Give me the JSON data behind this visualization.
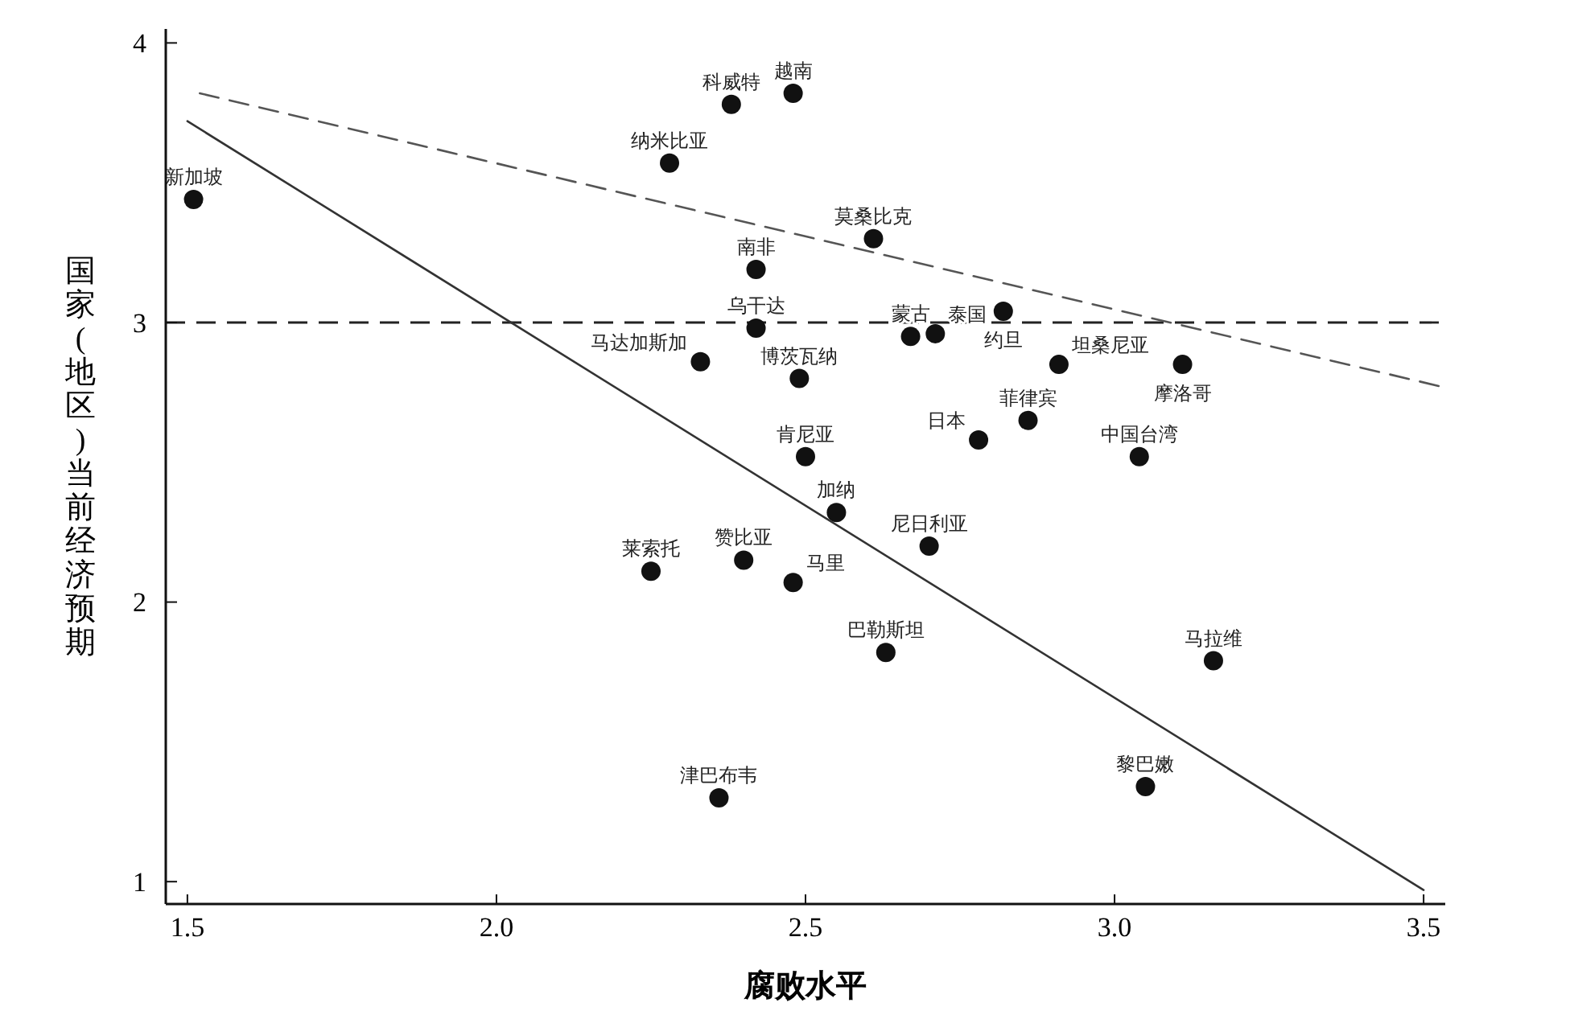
{
  "chart_data": {
    "type": "scatter",
    "xlabel": "腐败水平",
    "ylabel": "国家(地区)当前经济预期",
    "xlim": [
      1.465,
      3.535
    ],
    "ylim": [
      0.92,
      4.05
    ],
    "xticks": [
      1.5,
      {
        "value": 2,
        "label": "2.0"
      },
      2.5,
      {
        "value": 3,
        "label": "3.0"
      },
      3.5
    ],
    "yticks": [
      1,
      2,
      3,
      4
    ],
    "grid": false,
    "series": [
      {
        "color": "#111111",
        "marker": "circle",
        "x": [
          1.51,
          2.38,
          2.48,
          2.28,
          2.61,
          2.42,
          2.42,
          2.33,
          2.49,
          2.67,
          2.71,
          2.82,
          2.91,
          3.11,
          2.86,
          2.78,
          3.04,
          2.5,
          2.55,
          2.7,
          2.25,
          2.4,
          2.48,
          2.63,
          3.16,
          2.36,
          3.05
        ],
        "values": [
          3.44,
          3.78,
          3.82,
          3.57,
          3.3,
          3.19,
          2.98,
          2.86,
          2.8,
          2.95,
          2.96,
          3.04,
          2.85,
          2.85,
          2.65,
          2.58,
          2.52,
          2.52,
          2.32,
          2.2,
          2.11,
          2.15,
          2.07,
          1.82,
          1.79,
          1.3,
          1.34
        ]
      },
      {
        "type": "line",
        "color": "#333333",
        "line_style": "solid",
        "marker": "none",
        "x": [
          1.5,
          3.5
        ],
        "values": [
          3.72,
          0.97
        ]
      },
      {
        "type": "line",
        "color": "#555555",
        "line_style": "dashed",
        "marker": "none",
        "x": [
          1.52,
          3.53
        ],
        "values": [
          3.82,
          2.77
        ]
      }
    ],
    "ref_lines": [
      {
        "axis": "y",
        "value": 3,
        "color": "#222222",
        "line_style": "dashed"
      }
    ],
    "annotations": [
      {
        "text": "新加坡",
        "x": 1.51,
        "y": 3.44
      },
      {
        "text": "科威特",
        "x": 2.38,
        "y": 3.78
      },
      {
        "text": "越南",
        "x": 2.48,
        "y": 3.82
      },
      {
        "text": "纳米比亚",
        "x": 2.28,
        "y": 3.57
      },
      {
        "text": "莫桑比克",
        "x": 2.61,
        "y": 3.3
      },
      {
        "text": "南非",
        "x": 2.42,
        "y": 3.19
      },
      {
        "text": "乌干达",
        "x": 2.42,
        "y": 2.98
      },
      {
        "text": "马达加斯加",
        "x": 2.33,
        "y": 2.86
      },
      {
        "text": "博茨瓦纳",
        "x": 2.49,
        "y": 2.8
      },
      {
        "text": "蒙古",
        "x": 2.67,
        "y": 2.95
      },
      {
        "text": "泰国",
        "x": 2.71,
        "y": 2.96
      },
      {
        "text": "约旦",
        "x": 2.82,
        "y": 3.04
      },
      {
        "text": "坦桑尼亚",
        "x": 2.91,
        "y": 2.85
      },
      {
        "text": "摩洛哥",
        "x": 3.11,
        "y": 2.85
      },
      {
        "text": "菲律宾",
        "x": 2.86,
        "y": 2.65
      },
      {
        "text": "日本",
        "x": 2.78,
        "y": 2.58
      },
      {
        "text": "中国台湾",
        "x": 3.04,
        "y": 2.52
      },
      {
        "text": "肯尼亚",
        "x": 2.5,
        "y": 2.52
      },
      {
        "text": "加纳",
        "x": 2.55,
        "y": 2.32
      },
      {
        "text": "尼日利亚",
        "x": 2.7,
        "y": 2.2
      },
      {
        "text": "莱索托",
        "x": 2.25,
        "y": 2.11
      },
      {
        "text": "赞比亚",
        "x": 2.4,
        "y": 2.15
      },
      {
        "text": "马里",
        "x": 2.48,
        "y": 2.07
      },
      {
        "text": "巴勒斯坦",
        "x": 2.63,
        "y": 1.82
      },
      {
        "text": "马拉维",
        "x": 3.16,
        "y": 1.79
      },
      {
        "text": "津巴布韦",
        "x": 2.36,
        "y": 1.3
      },
      {
        "text": "黎巴嫩",
        "x": 3.05,
        "y": 1.34
      }
    ]
  }
}
